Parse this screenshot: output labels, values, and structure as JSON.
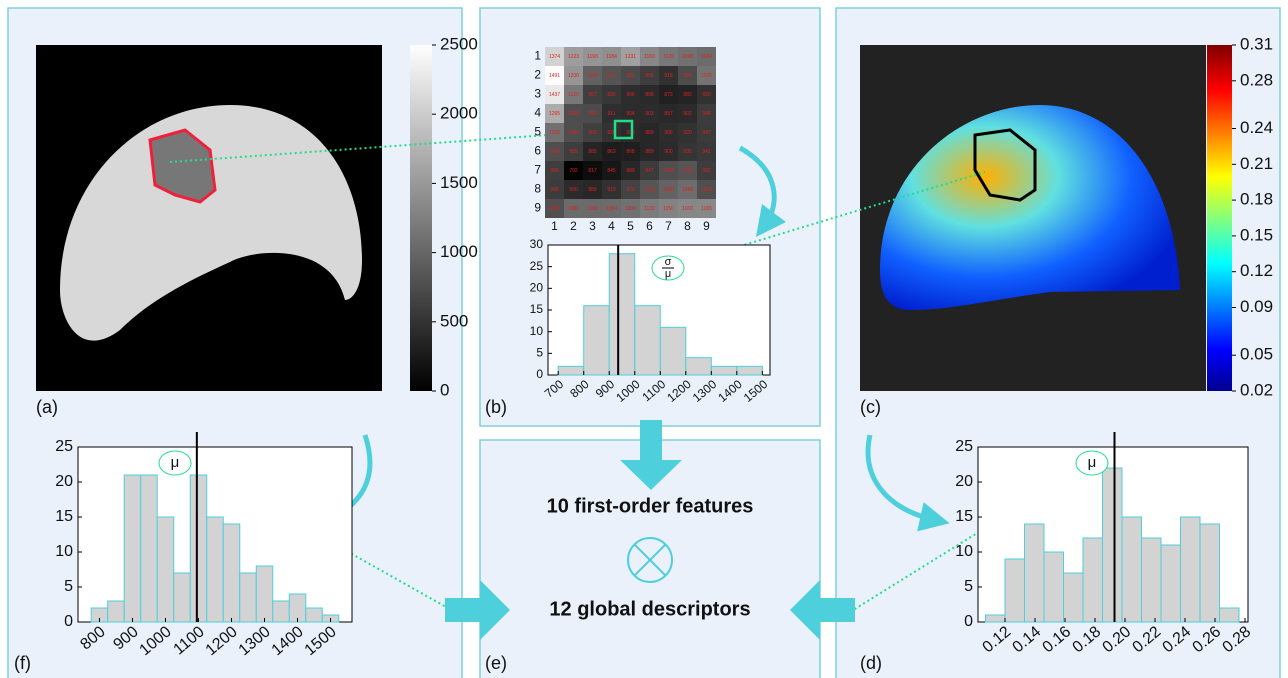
{
  "panels": {
    "a": "(a)",
    "b": "(b)",
    "c": "(c)",
    "d": "(d)",
    "e": "(e)",
    "f": "(f)"
  },
  "image_a": {
    "colorbar_lim": [
      0,
      2500
    ],
    "colorbar_ticks": [
      0,
      500,
      1000,
      1500,
      2000,
      2500
    ]
  },
  "image_c": {
    "colorbar_lim": [
      0.02,
      0.31
    ],
    "colorbar_ticks": [
      0.02,
      0.05,
      0.09,
      0.12,
      0.15,
      0.18,
      0.21,
      0.24,
      0.28,
      0.31
    ]
  },
  "matrix": {
    "row_labels": [
      1,
      2,
      3,
      4,
      5,
      6,
      7,
      8,
      9
    ],
    "col_labels": [
      1,
      2,
      3,
      4,
      5,
      6,
      7,
      8,
      9
    ],
    "cells": [
      [
        1374,
        1223,
        1198,
        1184,
        1231,
        1160,
        1120,
        1098,
        1084
      ],
      [
        1491,
        1200,
        1053,
        1017,
        991,
        955,
        918,
        994,
        1105
      ],
      [
        1437,
        1120,
        957,
        936,
        906,
        898,
        873,
        883,
        920
      ],
      [
        1265,
        1000,
        995,
        911,
        904,
        903,
        897,
        902,
        948
      ],
      [
        1100,
        1000,
        960,
        920,
        900,
        889,
        906,
        920,
        947
      ],
      [
        1004,
        955,
        885,
        863,
        868,
        889,
        900,
        930,
        941
      ],
      [
        956,
        792,
        817,
        845,
        889,
        947,
        1003,
        1019,
        952
      ],
      [
        948,
        900,
        889,
        919,
        970,
        1023,
        1060,
        1088,
        1003
      ],
      [
        1006,
        1081,
        1083,
        1084,
        1100,
        1130,
        1150,
        1160,
        1165
      ]
    ]
  },
  "hist_b": {
    "bins": [
      700,
      800,
      900,
      1000,
      1100,
      1200,
      1300,
      1400,
      1500
    ],
    "counts": [
      2,
      16,
      28,
      16,
      11,
      4,
      2,
      2
    ],
    "xlim": [
      660,
      1530
    ],
    "xticks": [
      700,
      800,
      900,
      1000,
      1100,
      1200,
      1300,
      1400,
      1500
    ],
    "ylim": [
      0,
      30
    ],
    "yticks": [
      0,
      5,
      10,
      15,
      20,
      25,
      30
    ],
    "marker": 935,
    "annotation": {
      "numerator": "σ",
      "denominator": "μ"
    }
  },
  "hist_f": {
    "bins": [
      775,
      825,
      875,
      925,
      975,
      1025,
      1075,
      1125,
      1175,
      1225,
      1275,
      1325,
      1375,
      1425,
      1475,
      1525
    ],
    "counts": [
      2,
      3,
      21,
      21,
      15,
      7,
      21,
      15,
      14,
      7,
      8,
      3,
      4,
      2,
      1
    ],
    "xlim": [
      735,
      1565
    ],
    "xticks": [
      800,
      900,
      1000,
      1100,
      1200,
      1300,
      1400,
      1500
    ],
    "ylim": [
      0,
      25
    ],
    "yticks": [
      0,
      5,
      10,
      15,
      20,
      25
    ],
    "marker": 1095,
    "annotation": "μ"
  },
  "hist_d": {
    "bins": [
      0.107,
      0.12,
      0.133,
      0.146,
      0.159,
      0.172,
      0.185,
      0.198,
      0.211,
      0.224,
      0.237,
      0.25,
      0.263,
      0.276
    ],
    "counts": [
      1,
      9,
      14,
      10,
      7,
      12,
      22,
      15,
      12,
      11,
      15,
      14,
      2
    ],
    "xlim": [
      0.102,
      0.282
    ],
    "xticks": [
      0.12,
      0.14,
      0.16,
      0.18,
      {
        "value": 0.2,
        "label": "0.20"
      },
      0.22,
      0.24,
      0.26,
      0.28
    ],
    "ylim": [
      0,
      25
    ],
    "yticks": [
      0,
      5,
      10,
      15,
      20,
      25
    ],
    "marker": 0.193,
    "annotation": "μ"
  },
  "center": {
    "features": "10 first-order features",
    "descriptors": "12 global descriptors"
  }
}
